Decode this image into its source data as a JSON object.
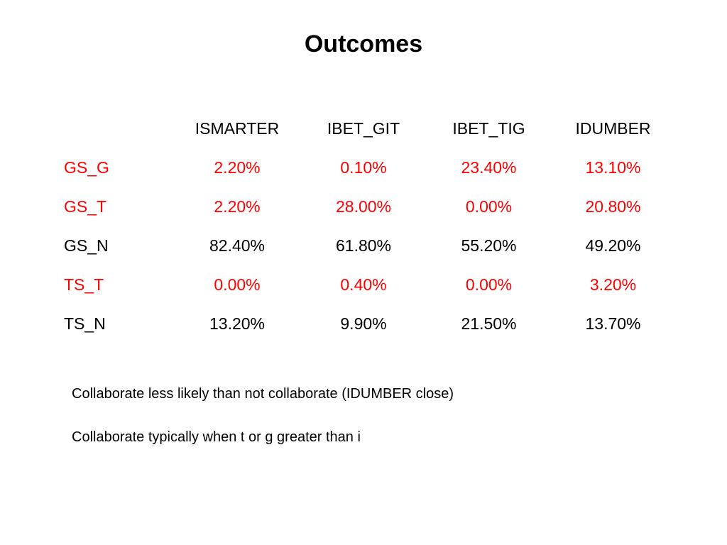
{
  "title": "Outcomes",
  "table": {
    "columns": [
      "ISMARTER",
      "IBET_GIT",
      "IBET_TIG",
      "IDUMBER"
    ],
    "rows": [
      {
        "label": "GS_G",
        "highlight": true,
        "color": "#ff0000",
        "values": [
          "2.20%",
          "0.10%",
          "23.40%",
          "13.10%"
        ]
      },
      {
        "label": "GS_T",
        "highlight": true,
        "color": "#ff0000",
        "values": [
          "2.20%",
          "28.00%",
          "0.00%",
          "20.80%"
        ]
      },
      {
        "label": "GS_N",
        "highlight": false,
        "color": "#000000",
        "values": [
          "82.40%",
          "61.80%",
          "55.20%",
          "49.20%"
        ]
      },
      {
        "label": "TS_T",
        "highlight": true,
        "color": "#ff0000",
        "values": [
          "0.00%",
          "0.40%",
          "0.00%",
          "3.20%"
        ]
      },
      {
        "label": "TS_N",
        "highlight": false,
        "color": "#000000",
        "values": [
          "13.20%",
          "9.90%",
          "21.50%",
          "13.70%"
        ]
      }
    ]
  },
  "notes": [
    "Collaborate less likely than not collaborate (IDUMBER close)",
    "Collaborate typically when t or g greater than i"
  ]
}
